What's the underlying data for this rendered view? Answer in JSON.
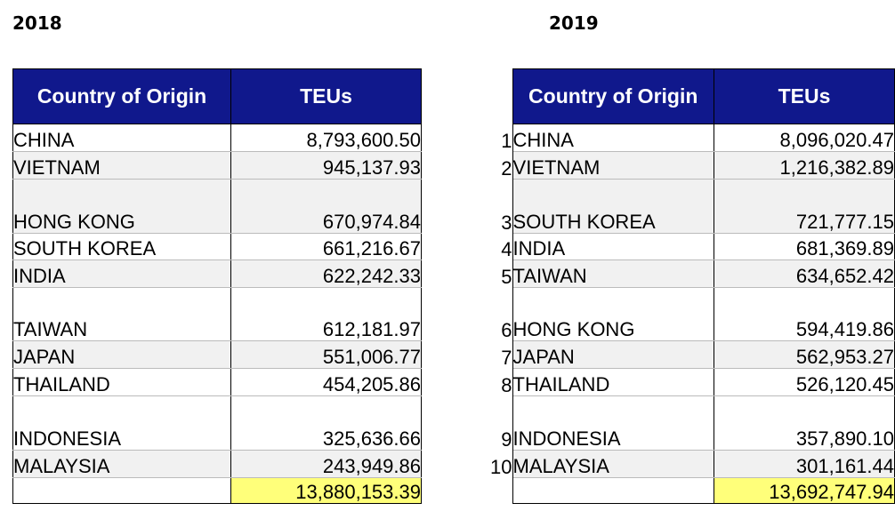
{
  "years": {
    "left": "2018",
    "right": "2019"
  },
  "headers": {
    "country": "Country of Origin",
    "teus": "TEUs"
  },
  "table_2018": {
    "rows": [
      {
        "country": "CHINA",
        "teus": "8,793,600.50"
      },
      {
        "country": "VIETNAM",
        "teus": "945,137.93"
      },
      {
        "country": "HONG KONG",
        "teus": "670,974.84"
      },
      {
        "country": "SOUTH KOREA",
        "teus": "661,216.67"
      },
      {
        "country": "INDIA",
        "teus": "622,242.33"
      },
      {
        "country": "TAIWAN",
        "teus": "612,181.97"
      },
      {
        "country": "JAPAN",
        "teus": "551,006.77"
      },
      {
        "country": "THAILAND",
        "teus": "454,205.86"
      },
      {
        "country": "INDONESIA",
        "teus": "325,636.66"
      },
      {
        "country": "MALAYSIA",
        "teus": "243,949.86"
      }
    ],
    "total": "13,880,153.39"
  },
  "table_2019": {
    "rows": [
      {
        "rank": "1",
        "country": "CHINA",
        "teus": "8,096,020.47"
      },
      {
        "rank": "2",
        "country": "VIETNAM",
        "teus": "1,216,382.89"
      },
      {
        "rank": "3",
        "country": "SOUTH KOREA",
        "teus": "721,777.15"
      },
      {
        "rank": "4",
        "country": "INDIA",
        "teus": "681,369.89"
      },
      {
        "rank": "5",
        "country": "TAIWAN",
        "teus": "634,652.42"
      },
      {
        "rank": "6",
        "country": "HONG KONG",
        "teus": "594,419.86"
      },
      {
        "rank": "7",
        "country": "JAPAN",
        "teus": "562,953.27"
      },
      {
        "rank": "8",
        "country": "THAILAND",
        "teus": "526,120.45"
      },
      {
        "rank": "9",
        "country": "INDONESIA",
        "teus": "357,890.10"
      },
      {
        "rank": "10",
        "country": "MALAYSIA",
        "teus": "301,161.44"
      }
    ],
    "total": "13,692,747.94"
  },
  "colors": {
    "header_bg": "#10188c",
    "header_text": "#ffffff",
    "total_highlight": "#ffff7a",
    "row_shade": "#f1f1f1"
  }
}
